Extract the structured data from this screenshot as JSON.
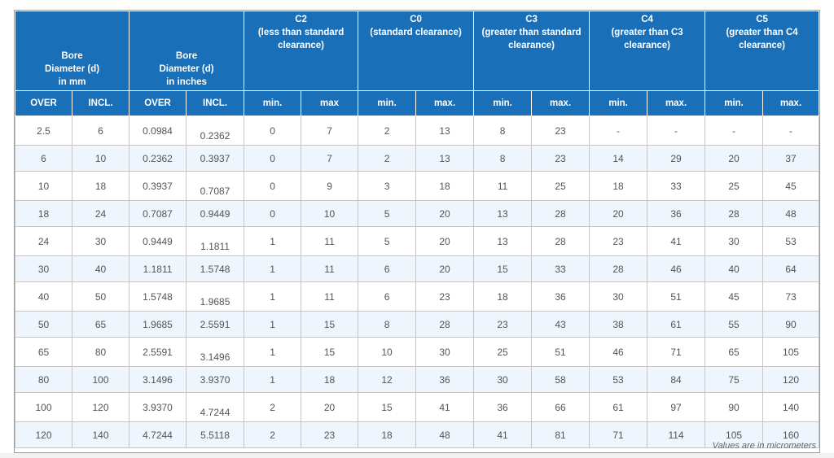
{
  "groups": [
    {
      "lines": [
        "Bore",
        "Diameter (d)",
        "in mm"
      ]
    },
    {
      "lines": [
        "Bore",
        "Diameter (d)",
        "in inches"
      ]
    },
    {
      "lines": [
        "C2",
        "(less than standard",
        "clearance)"
      ]
    },
    {
      "lines": [
        "C0",
        "(standard clearance)"
      ]
    },
    {
      "lines": [
        "C3",
        "(greater than standard",
        "clearance)"
      ]
    },
    {
      "lines": [
        "C4",
        "(greater than C3",
        "clearance)"
      ]
    },
    {
      "lines": [
        "C5",
        "(greater than C4",
        "clearance)"
      ]
    }
  ],
  "subheaders": [
    "OVER",
    "INCL.",
    "OVER",
    "INCL.",
    "min.",
    "max",
    "min.",
    "max.",
    "min.",
    "max.",
    "min.",
    "max.",
    "min.",
    "max."
  ],
  "rows": [
    [
      "2.5",
      "6",
      "0.0984",
      "0.2362",
      "0",
      "7",
      "2",
      "13",
      "8",
      "23",
      "-",
      "-",
      "-",
      "-"
    ],
    [
      "6",
      "10",
      "0.2362",
      "0.3937",
      "0",
      "7",
      "2",
      "13",
      "8",
      "23",
      "14",
      "29",
      "20",
      "37"
    ],
    [
      "10",
      "18",
      "0.3937",
      "0.7087",
      "0",
      "9",
      "3",
      "18",
      "11",
      "25",
      "18",
      "33",
      "25",
      "45"
    ],
    [
      "18",
      "24",
      "0.7087",
      "0.9449",
      "0",
      "10",
      "5",
      "20",
      "13",
      "28",
      "20",
      "36",
      "28",
      "48"
    ],
    [
      "24",
      "30",
      "0.9449",
      "1.1811",
      "1",
      "11",
      "5",
      "20",
      "13",
      "28",
      "23",
      "41",
      "30",
      "53"
    ],
    [
      "30",
      "40",
      "1.1811",
      "1.5748",
      "1",
      "11",
      "6",
      "20",
      "15",
      "33",
      "28",
      "46",
      "40",
      "64"
    ],
    [
      "40",
      "50",
      "1.5748",
      "1.9685",
      "1",
      "11",
      "6",
      "23",
      "18",
      "36",
      "30",
      "51",
      "45",
      "73"
    ],
    [
      "50",
      "65",
      "1.9685",
      "2.5591",
      "1",
      "15",
      "8",
      "28",
      "23",
      "43",
      "38",
      "61",
      "55",
      "90"
    ],
    [
      "65",
      "80",
      "2.5591",
      "3.1496",
      "1",
      "15",
      "10",
      "30",
      "25",
      "51",
      "46",
      "71",
      "65",
      "105"
    ],
    [
      "80",
      "100",
      "3.1496",
      "3.9370",
      "1",
      "18",
      "12",
      "36",
      "30",
      "58",
      "53",
      "84",
      "75",
      "120"
    ],
    [
      "100",
      "120",
      "3.9370",
      "4.7244",
      "2",
      "20",
      "15",
      "41",
      "36",
      "66",
      "61",
      "97",
      "90",
      "140"
    ],
    [
      "120",
      "140",
      "4.7244",
      "5.5118",
      "2",
      "23",
      "18",
      "48",
      "41",
      "81",
      "71",
      "114",
      "105",
      "160"
    ]
  ],
  "note": "Values are in micrometers"
}
